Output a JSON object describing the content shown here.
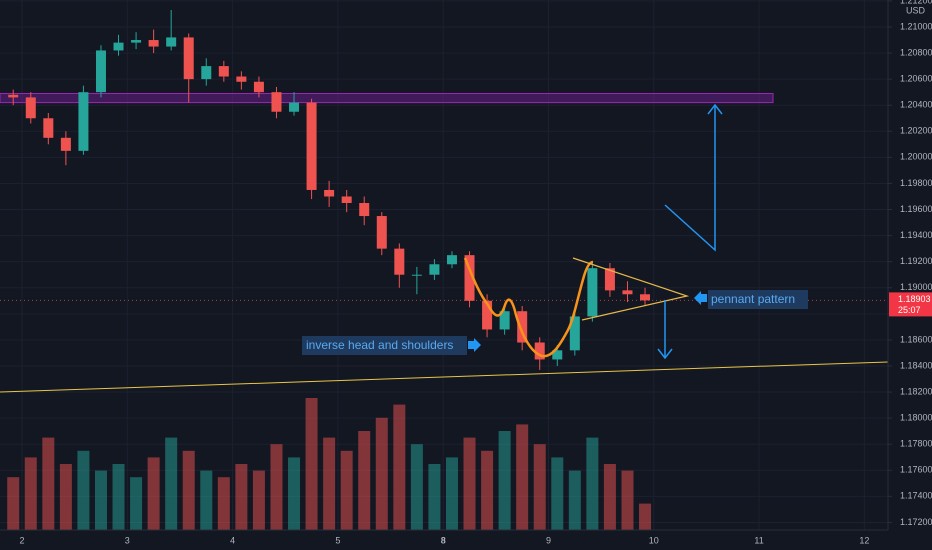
{
  "chart_data": {
    "type": "candlestick",
    "currency": "USD",
    "ylim": [
      1.17142,
      1.21207
    ],
    "yticks": [
      {
        "value": 1.212,
        "label": "1.21200"
      },
      {
        "value": 1.21,
        "label": "1.21000"
      },
      {
        "value": 1.208,
        "label": "1.20800"
      },
      {
        "value": 1.206,
        "label": "1.20600"
      },
      {
        "value": 1.204,
        "label": "1.20400"
      },
      {
        "value": 1.202,
        "label": "1.20200"
      },
      {
        "value": 1.2,
        "label": "1.20000"
      },
      {
        "value": 1.198,
        "label": "1.19800"
      },
      {
        "value": 1.196,
        "label": "1.19600"
      },
      {
        "value": 1.194,
        "label": "1.19400"
      },
      {
        "value": 1.192,
        "label": "1.19200"
      },
      {
        "value": 1.19,
        "label": "1.19000"
      },
      {
        "value": 1.188,
        "label": "1.18800"
      },
      {
        "value": 1.186,
        "label": "1.18600"
      },
      {
        "value": 1.184,
        "label": "1.18400"
      },
      {
        "value": 1.182,
        "label": "1.18200"
      },
      {
        "value": 1.18,
        "label": "1.18000"
      },
      {
        "value": 1.178,
        "label": "1.17800"
      },
      {
        "value": 1.176,
        "label": "1.17600"
      },
      {
        "value": 1.174,
        "label": "1.17400"
      },
      {
        "value": 1.172,
        "label": "1.17200"
      }
    ],
    "x_labels": [
      "2",
      "3",
      "4",
      "5",
      "8",
      "9",
      "10",
      "11",
      "12"
    ],
    "open": [
      1.2048,
      1.2046,
      1.203,
      1.2015,
      1.2005,
      1.205,
      1.2082,
      1.2088,
      1.209,
      1.2085,
      1.2092,
      1.206,
      1.207,
      1.2062,
      1.2058,
      1.205,
      1.2035,
      1.2042,
      1.1975,
      1.197,
      1.1965,
      1.1955,
      1.193,
      1.191,
      1.191,
      1.1918,
      1.1925,
      1.189,
      1.1868,
      1.1882,
      1.1858,
      1.1845,
      1.1852,
      1.1878,
      1.1915,
      1.1898,
      1.1895
    ],
    "high": [
      1.2052,
      1.205,
      1.2034,
      1.202,
      1.2055,
      1.2086,
      1.2094,
      1.2096,
      1.2098,
      1.2113,
      1.2095,
      1.2076,
      1.2074,
      1.2066,
      1.2062,
      1.2054,
      1.205,
      1.2045,
      1.1982,
      1.1975,
      1.197,
      1.1958,
      1.1934,
      1.1916,
      1.1922,
      1.1928,
      1.1928,
      1.1895,
      1.1887,
      1.1886,
      1.1862,
      1.1856,
      1.188,
      1.192,
      1.1919,
      1.1905,
      1.19
    ],
    "low": [
      1.204,
      1.2026,
      1.201,
      1.1994,
      1.2002,
      1.2046,
      1.2078,
      1.2083,
      1.208,
      1.2082,
      1.2042,
      1.2055,
      1.2058,
      1.2052,
      1.2046,
      1.203,
      1.2032,
      1.1968,
      1.1962,
      1.1958,
      1.1948,
      1.1925,
      1.19,
      1.1895,
      1.1906,
      1.1915,
      1.1885,
      1.1862,
      1.1864,
      1.1852,
      1.1837,
      1.184,
      1.1848,
      1.1874,
      1.1893,
      1.1889,
      1.1886
    ],
    "close": [
      1.2046,
      1.203,
      1.2015,
      1.2005,
      1.205,
      1.2082,
      1.2088,
      1.209,
      1.2085,
      1.2092,
      1.206,
      1.207,
      1.2062,
      1.2058,
      1.205,
      1.2035,
      1.2042,
      1.1975,
      1.197,
      1.1965,
      1.1955,
      1.193,
      1.191,
      1.191,
      1.1918,
      1.1925,
      1.189,
      1.1868,
      1.1882,
      1.1858,
      1.1845,
      1.1852,
      1.1878,
      1.1915,
      1.1898,
      1.1895,
      1.18903
    ],
    "volume": [
      40,
      55,
      70,
      50,
      60,
      45,
      50,
      40,
      55,
      70,
      60,
      45,
      40,
      50,
      45,
      65,
      55,
      100,
      70,
      60,
      75,
      85,
      95,
      65,
      50,
      55,
      70,
      60,
      75,
      80,
      65,
      55,
      45,
      70,
      50,
      45,
      20
    ],
    "up_color": "#26a69a",
    "down_color": "#ef5350",
    "zone": [
      1.2042,
      1.2049
    ],
    "trendline": [
      1.182,
      1.18431
    ],
    "last_price": 1.18903,
    "countdown": "25:07",
    "annotations": [
      "inverse head and shoulders",
      "pennant pattern"
    ]
  }
}
